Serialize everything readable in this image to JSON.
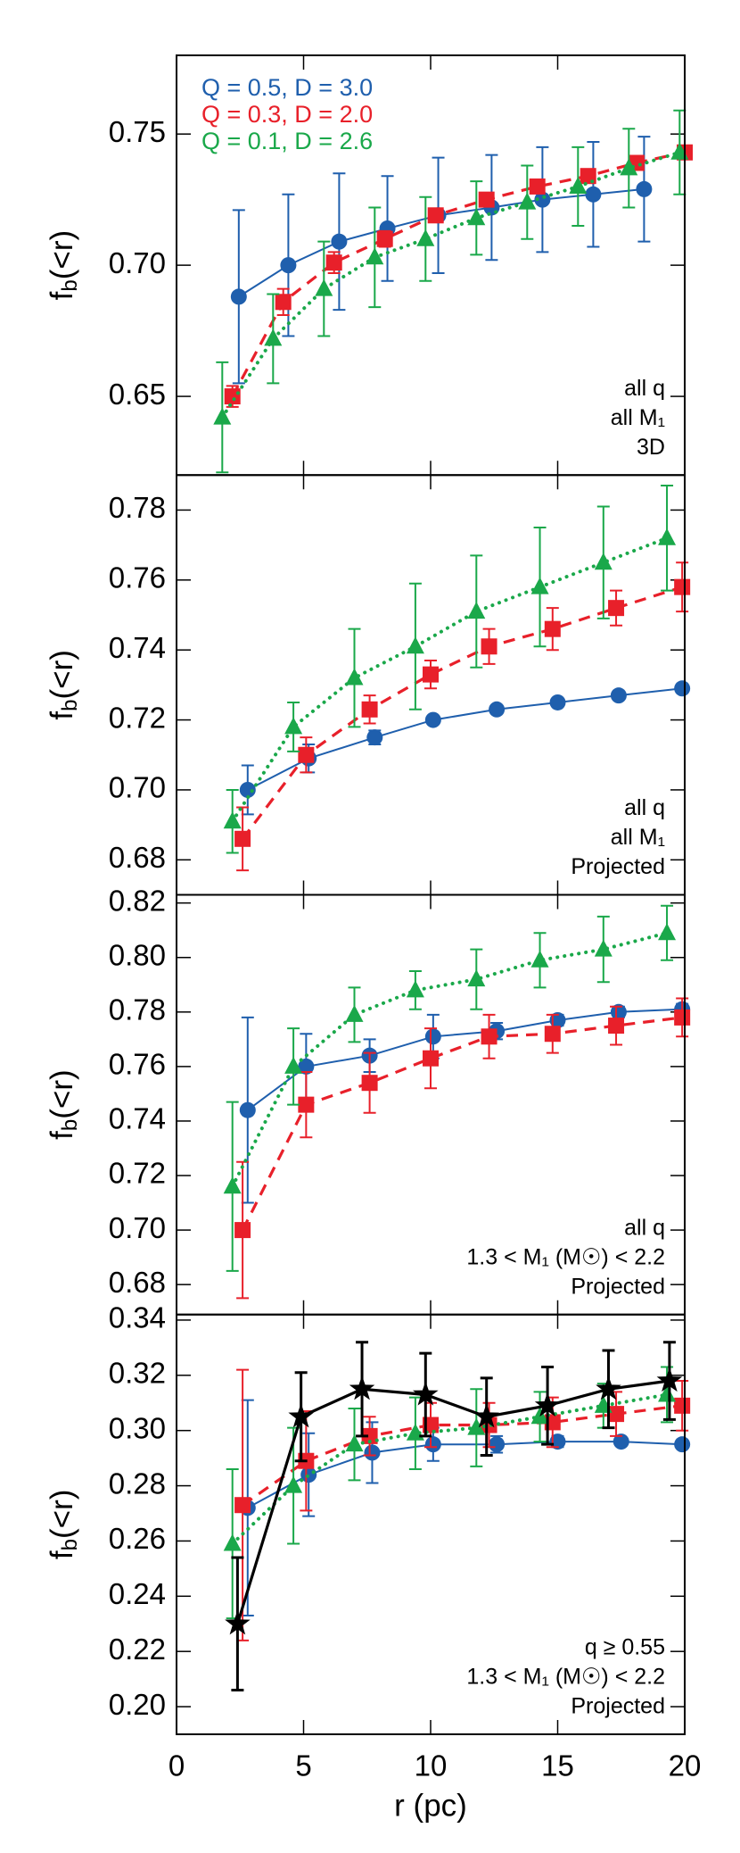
{
  "chart_data": [
    {
      "type": "line",
      "ylabel": "fb(<r)",
      "xlim": [
        0,
        20
      ],
      "xticks": [
        0,
        5,
        10,
        15,
        20
      ],
      "ylim": [
        0.62,
        0.78
      ],
      "yticks": [
        0.65,
        {
          "value": 0.7,
          "label": "0.70"
        },
        0.75
      ],
      "legend": "upper left",
      "annotation": [
        "all q",
        "all M₁",
        "3D"
      ],
      "series": [
        {
          "name": "Q = 0.5, D = 3.0",
          "color": "#1f5fad",
          "marker": "circle",
          "linestyle": "solid",
          "x": [
            2.45,
            4.4,
            6.4,
            8.3,
            10.3,
            12.4,
            14.4,
            16.4,
            18.4
          ],
          "values": [
            0.688,
            0.7,
            0.709,
            0.714,
            0.719,
            0.722,
            0.725,
            0.727,
            0.729
          ],
          "errors": [
            0.033,
            0.027,
            0.026,
            0.02,
            0.022,
            0.02,
            0.02,
            0.02,
            0.02
          ]
        },
        {
          "name": "Q = 0.3, D = 2.0",
          "color": "#e8202a",
          "marker": "square",
          "linestyle": "dashed",
          "x": [
            2.2,
            4.2,
            6.2,
            8.2,
            10.2,
            12.2,
            14.2,
            16.2,
            18.1,
            20
          ],
          "values": [
            0.65,
            0.686,
            0.701,
            0.71,
            0.719,
            0.725,
            0.73,
            0.734,
            0.739,
            0.743
          ],
          "errors": [
            0.004,
            0.005,
            0.004,
            0.003,
            0.002,
            0.002,
            0.002,
            0.002,
            0.002,
            0.002
          ]
        },
        {
          "name": "Q = 0.1, D = 2.6",
          "color": "#1aa84a",
          "marker": "triangle",
          "linestyle": "dotted",
          "x": [
            1.8,
            3.8,
            5.8,
            7.8,
            9.8,
            11.8,
            13.8,
            15.8,
            17.8,
            19.8
          ],
          "values": [
            0.642,
            0.672,
            0.691,
            0.703,
            0.71,
            0.718,
            0.724,
            0.73,
            0.737,
            0.743
          ],
          "errors": [
            0.021,
            0.017,
            0.018,
            0.019,
            0.016,
            0.014,
            0.014,
            0.015,
            0.015,
            0.016
          ]
        }
      ]
    },
    {
      "type": "line",
      "ylabel": "fb(<r)",
      "xlim": [
        0,
        20
      ],
      "xticks": [
        0,
        5,
        10,
        15,
        20
      ],
      "ylim": [
        0.67,
        0.79
      ],
      "yticks": [
        0.68,
        {
          "value": 0.7,
          "label": "0.70"
        },
        0.72,
        0.74,
        0.76,
        0.78
      ],
      "annotation": [
        "all q",
        "all M₁",
        "Projected"
      ],
      "series": [
        {
          "color": "#1f5fad",
          "marker": "circle",
          "linestyle": "solid",
          "x": [
            2.8,
            5.2,
            7.8,
            10.1,
            12.6,
            15.0,
            17.4,
            19.9
          ],
          "values": [
            0.7,
            0.709,
            0.715,
            0.72,
            0.723,
            0.725,
            0.727,
            0.729
          ],
          "errors": [
            0.007,
            0.004,
            0.002,
            0.001,
            0.001,
            0.001,
            0.001,
            0.001
          ]
        },
        {
          "color": "#e8202a",
          "marker": "square",
          "linestyle": "dashed",
          "x": [
            2.6,
            5.1,
            7.6,
            10.0,
            12.3,
            14.8,
            17.3,
            19.9
          ],
          "values": [
            0.686,
            0.71,
            0.723,
            0.733,
            0.741,
            0.746,
            0.752,
            0.758
          ],
          "errors": [
            0.009,
            0.005,
            0.004,
            0.004,
            0.005,
            0.006,
            0.005,
            0.007
          ]
        },
        {
          "color": "#1aa84a",
          "marker": "triangle",
          "linestyle": "dotted",
          "x": [
            2.2,
            4.6,
            7.0,
            9.4,
            11.8,
            14.3,
            16.8,
            19.3
          ],
          "values": [
            0.691,
            0.718,
            0.732,
            0.741,
            0.751,
            0.758,
            0.765,
            0.772
          ],
          "errors": [
            0.009,
            0.007,
            0.014,
            0.018,
            0.016,
            0.017,
            0.016,
            0.015
          ]
        }
      ]
    },
    {
      "type": "line",
      "ylabel": "fb(<r)",
      "xlim": [
        0,
        20
      ],
      "xticks": [
        0,
        5,
        10,
        15,
        20
      ],
      "ylim": [
        0.669,
        0.823
      ],
      "yticks": [
        0.68,
        {
          "value": 0.7,
          "label": "0.70"
        },
        0.72,
        0.74,
        0.76,
        0.78,
        {
          "value": 0.8,
          "label": "0.80"
        },
        0.82
      ],
      "annotation": [
        "all q",
        "1.3 < M₁ (M☉) < 2.2",
        "Projected"
      ],
      "series": [
        {
          "color": "#1f5fad",
          "marker": "circle",
          "linestyle": "solid",
          "x": [
            2.8,
            5.1,
            7.6,
            10.1,
            12.6,
            15.0,
            17.4,
            19.9
          ],
          "values": [
            0.744,
            0.76,
            0.764,
            0.771,
            0.773,
            0.777,
            0.78,
            0.781
          ],
          "errors": [
            0.034,
            0.012,
            0.006,
            0.008,
            0.003,
            0.002,
            0.002,
            0.002
          ]
        },
        {
          "color": "#e8202a",
          "marker": "square",
          "linestyle": "dashed",
          "x": [
            2.6,
            5.1,
            7.6,
            10.0,
            12.3,
            14.8,
            17.3,
            19.9
          ],
          "values": [
            0.7,
            0.746,
            0.754,
            0.763,
            0.771,
            0.772,
            0.775,
            0.778
          ],
          "errors": [
            0.025,
            0.012,
            0.011,
            0.011,
            0.008,
            0.007,
            0.007,
            0.007
          ]
        },
        {
          "color": "#1aa84a",
          "marker": "triangle",
          "linestyle": "dotted",
          "x": [
            2.2,
            4.6,
            7.0,
            9.4,
            11.8,
            14.3,
            16.8,
            19.3
          ],
          "values": [
            0.716,
            0.76,
            0.779,
            0.788,
            0.792,
            0.799,
            0.803,
            0.809
          ],
          "errors": [
            0.031,
            0.014,
            0.01,
            0.007,
            0.011,
            0.01,
            0.012,
            0.01
          ]
        }
      ]
    },
    {
      "type": "line",
      "ylabel": "fb(<r)",
      "xlabel": "r (pc)",
      "xlim": [
        0,
        20
      ],
      "xticks": [
        0,
        5,
        10,
        15,
        20
      ],
      "ylim": [
        0.19,
        0.342
      ],
      "yticks": [
        {
          "value": 0.2,
          "label": "0.20"
        },
        0.22,
        0.24,
        0.26,
        0.28,
        {
          "value": 0.3,
          "label": "0.30"
        },
        0.32,
        0.34
      ],
      "annotation": [
        "q ≥ 0.55",
        "1.3 < M₁ (M☉) < 2.2",
        "Projected"
      ],
      "series": [
        {
          "color": "#1f5fad",
          "marker": "circle",
          "linestyle": "solid",
          "x": [
            2.8,
            5.2,
            7.7,
            10.1,
            12.6,
            15.0,
            17.5,
            19.9
          ],
          "values": [
            0.272,
            0.284,
            0.292,
            0.295,
            0.295,
            0.296,
            0.296,
            0.295
          ],
          "errors": [
            0.039,
            0.015,
            0.011,
            0.006,
            0.003,
            0.002,
            0.001,
            0.001
          ]
        },
        {
          "color": "#e8202a",
          "marker": "square",
          "linestyle": "dashed",
          "x": [
            2.6,
            5.1,
            7.6,
            10.0,
            12.3,
            14.8,
            17.3,
            19.9
          ],
          "values": [
            0.273,
            0.289,
            0.298,
            0.302,
            0.302,
            0.303,
            0.306,
            0.309
          ],
          "errors": [
            0.049,
            0.018,
            0.007,
            0.008,
            0.008,
            0.009,
            0.008,
            0.009
          ]
        },
        {
          "color": "#1aa84a",
          "marker": "triangle",
          "linestyle": "dotted",
          "x": [
            2.2,
            4.6,
            7.0,
            9.4,
            11.8,
            14.3,
            16.8,
            19.3
          ],
          "values": [
            0.259,
            0.28,
            0.295,
            0.299,
            0.301,
            0.305,
            0.309,
            0.313
          ],
          "errors": [
            0.027,
            0.021,
            0.013,
            0.013,
            0.014,
            0.009,
            0.008,
            0.01
          ]
        },
        {
          "color": "#000000",
          "marker": "star",
          "linestyle": "thick",
          "x": [
            2.4,
            4.9,
            7.3,
            9.8,
            12.2,
            14.6,
            17.0,
            19.4
          ],
          "values": [
            0.23,
            0.305,
            0.315,
            0.313,
            0.305,
            0.309,
            0.315,
            0.318
          ],
          "errors": [
            0.024,
            0.016,
            0.017,
            0.015,
            0.014,
            0.014,
            0.014,
            0.014
          ]
        }
      ]
    }
  ]
}
